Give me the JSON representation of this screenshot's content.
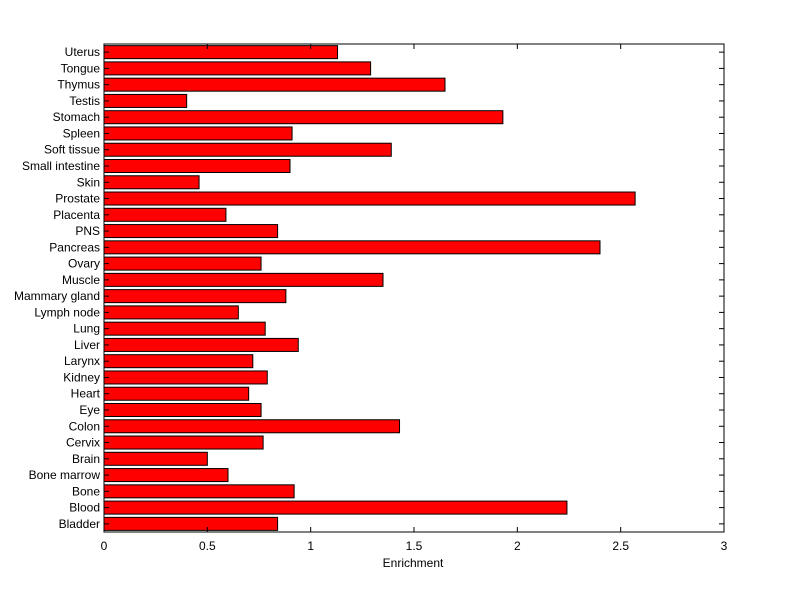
{
  "chart_data": {
    "type": "bar",
    "orientation": "horizontal",
    "title": "",
    "xlabel": "Enrichment",
    "ylabel": "",
    "xlim": [
      0,
      3
    ],
    "xticks": [
      0,
      0.5,
      1,
      1.5,
      2,
      2.5,
      3
    ],
    "xtick_labels": [
      "0",
      "0.5",
      "1",
      "1.5",
      "2",
      "2.5",
      "3"
    ],
    "grid": false,
    "bar_color": "#ff0000",
    "categories": [
      "Bladder",
      "Blood",
      "Bone",
      "Bone marrow",
      "Brain",
      "Cervix",
      "Colon",
      "Eye",
      "Heart",
      "Kidney",
      "Larynx",
      "Liver",
      "Lung",
      "Lymph node",
      "Mammary gland",
      "Muscle",
      "Ovary",
      "Pancreas",
      "PNS",
      "Placenta",
      "Prostate",
      "Skin",
      "Small intestine",
      "Soft tissue",
      "Spleen",
      "Stomach",
      "Testis",
      "Thymus",
      "Tongue",
      "Uterus"
    ],
    "values": [
      0.84,
      2.24,
      0.92,
      0.6,
      0.5,
      0.77,
      1.43,
      0.76,
      0.7,
      0.79,
      0.72,
      0.94,
      0.78,
      0.65,
      0.88,
      1.35,
      0.76,
      2.4,
      0.84,
      0.59,
      2.57,
      0.46,
      0.9,
      1.39,
      0.91,
      1.93,
      0.4,
      1.65,
      1.29,
      1.13
    ]
  }
}
